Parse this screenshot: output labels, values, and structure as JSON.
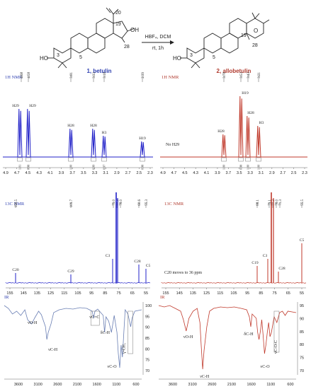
{
  "colors": {
    "betulin": "#2121c8",
    "allobetulin": "#c0392b",
    "ir_left": "#6a7fb4",
    "ir_right": "#c0392b",
    "label_blue": "#2e3fb0",
    "label_red": "#b03a2e",
    "text": "#222222",
    "axis": "#444444"
  },
  "scheme": {
    "betulin_name": "1, betulin",
    "allobetulin_name": "2, allobetulin",
    "reagent_top": "HBF₄, DCM",
    "reagent_bottom": "rt, 1h",
    "atom_labels_left": [
      "HO",
      "3",
      "5",
      "19",
      "20",
      "28",
      "OH"
    ],
    "atom_labels_right": [
      "HO",
      "3",
      "5",
      "19",
      "O",
      "28"
    ]
  },
  "h_nmr": {
    "left": {
      "title": "1H NMR",
      "peak_top_labels": [
        "4.68",
        "4.58",
        "3.81",
        "3.33",
        "3.18",
        "2.39"
      ],
      "peak_labels": [
        "H29",
        "H29",
        "H28",
        "H28",
        "H3",
        "H19"
      ],
      "integrals": [
        "1.01",
        "0.98",
        "1.00",
        "0.99",
        "0.97",
        "0.98"
      ],
      "x_ticks": [
        "4.9",
        "4.7",
        "4.5",
        "4.3",
        "4.1",
        "3.9",
        "3.7",
        "3.5",
        "3.3",
        "3.1",
        "2.9",
        "2.7",
        "2.5",
        "2.3"
      ]
    },
    "right": {
      "title": "1H NMR",
      "peak_top_labels": [
        "3.78",
        "3.53",
        "3.43",
        "3.21"
      ],
      "peak_labels": [
        "H28",
        "H19",
        "H28",
        "H3"
      ],
      "note": "No H29",
      "integrals": [
        "1.00",
        "0.98",
        "1.00",
        "1.00"
      ],
      "x_ticks": [
        "4.9",
        "4.7",
        "4.5",
        "4.3",
        "4.1",
        "3.9",
        "3.7",
        "3.5",
        "3.3",
        "3.1",
        "2.9",
        "2.7",
        "2.5",
        "2.3"
      ]
    }
  },
  "c_nmr": {
    "left": {
      "title": "13C NMR",
      "peak_top_labels": [
        "150.5",
        "109.7",
        "79.0",
        "77.2",
        "78.0",
        "60.6",
        "55.3"
      ],
      "peak_labels": [
        "C20",
        "C29",
        "C3",
        "C28",
        "C5"
      ],
      "x_ticks": [
        "155",
        "145",
        "135",
        "125",
        "115",
        "105",
        "95",
        "85",
        "75",
        "65",
        "55"
      ]
    },
    "right": {
      "title": "13C NMR",
      "peak_top_labels": [
        "88.1",
        "79.1",
        "77.2",
        "78.0",
        "71.3",
        "55.5"
      ],
      "peak_labels": [
        "C19",
        "C3",
        "C28",
        "C5"
      ],
      "note": "C20 moves to 36 ppm",
      "x_ticks": [
        "155",
        "145",
        "135",
        "125",
        "115",
        "105",
        "95",
        "85",
        "75",
        "65",
        "55"
      ]
    }
  },
  "ir": {
    "left": {
      "title": "IR",
      "labels": [
        "νO-H",
        "νC-H",
        "νC=C",
        "δC-H",
        "γ-CH₂",
        "νC-O"
      ],
      "y_ticks": [
        "100",
        "95",
        "90",
        "85",
        "80",
        "75",
        "70"
      ],
      "x_ticks": [
        "3600",
        "3100",
        "2600",
        "2100",
        "1600",
        "1100",
        "600"
      ]
    },
    "right": {
      "title": "IR",
      "labels": [
        "νO-H",
        "νC-H",
        "δC-H",
        "νC-O",
        "νC-O-C"
      ],
      "y_ticks": [
        "95",
        "90",
        "85",
        "80",
        "75",
        "70"
      ],
      "x_ticks": [
        "3600",
        "3100",
        "2600",
        "2100",
        "1600",
        "1100",
        "600"
      ]
    }
  }
}
